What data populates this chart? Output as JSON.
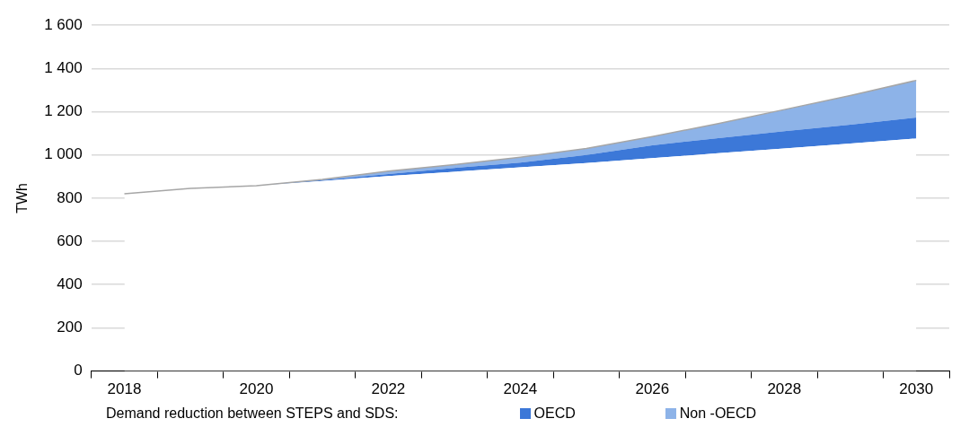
{
  "chart_data": {
    "type": "area",
    "stacked": true,
    "ylabel": "TWh",
    "legend": "bottom",
    "legend_title": "Demand reduction between STEPS and SDS:",
    "grid": "y",
    "categories": [
      "2018",
      null,
      "2020",
      null,
      "2022",
      null,
      "2024",
      null,
      "2026",
      null,
      "2028",
      null,
      "2030"
    ],
    "ylim": [
      0,
      1600
    ],
    "yticks": [
      0,
      200,
      400,
      600,
      800,
      {
        "value": 1000,
        "label": "1 000"
      },
      {
        "value": 1200,
        "label": "1 200"
      },
      {
        "value": 1400,
        "label": "1 400"
      },
      {
        "value": 1600,
        "label": "1 600"
      }
    ],
    "series": [
      {
        "color": "#ffffff",
        "values": [
          820,
          845,
          858,
          880,
          902,
          922,
          943,
          963,
          985,
          1008,
          1030,
          1053,
          1076
        ]
      },
      {
        "name": "OECD",
        "color": "#3c78d8",
        "values": [
          null,
          null,
          0,
          4,
          10,
          18,
          22,
          37,
          60,
          70,
          80,
          87,
          97
        ]
      },
      {
        "name": "Non -OECD",
        "color": "#8db3e8",
        "values": [
          null,
          null,
          0,
          3,
          13,
          15,
          25,
          30,
          40,
          67,
          100,
          135,
          172
        ]
      },
      {
        "type": "line",
        "color": "#a6a6a6",
        "values": [
          820,
          845,
          858,
          887,
          925,
          955,
          990,
          1030,
          1085,
          1145,
          1210,
          1275,
          1345
        ]
      }
    ]
  }
}
